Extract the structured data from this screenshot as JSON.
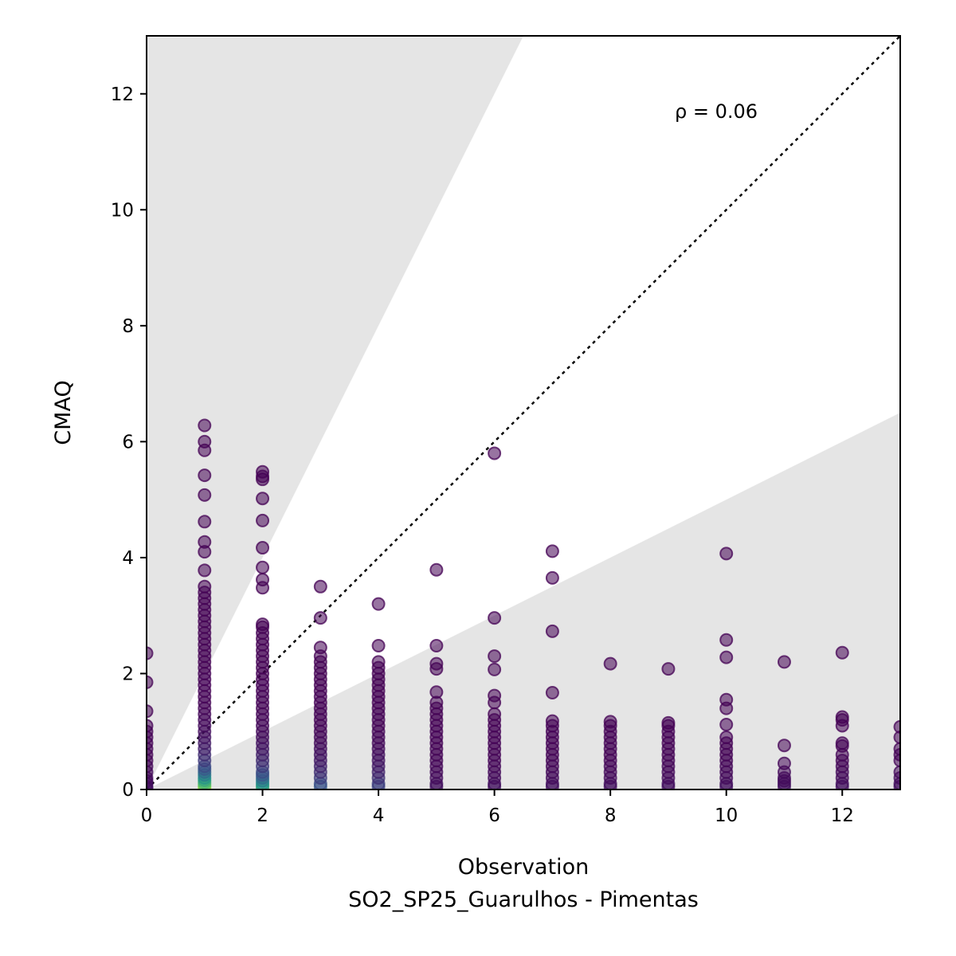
{
  "chart_data": {
    "type": "scatter",
    "title": "",
    "xlabel": "Observation",
    "xlabel_sub": "SO2_SP25_Guarulhos - Pimentas",
    "ylabel": "CMAQ",
    "xlim": [
      0,
      13
    ],
    "ylim": [
      0,
      13
    ],
    "xticks": [
      0,
      2,
      4,
      6,
      8,
      10,
      12
    ],
    "yticks": [
      0,
      2,
      4,
      6,
      8,
      10,
      12
    ],
    "grid": false,
    "annotation": "ρ = 0.06",
    "reference_line": {
      "style": "dotted",
      "slope": 1
    },
    "shaded_bounds": {
      "upper_slope": 2,
      "lower_slope": 0.5
    },
    "colormap": "viridis",
    "colors": {
      "low": "#440154",
      "mid": "#31688e",
      "high": "#fde725",
      "shade": "#e5e5e5"
    },
    "series": [
      {
        "x": 0,
        "y": [
          0.02,
          0.05,
          0.1,
          0.15,
          0.2,
          0.3,
          0.4,
          0.5,
          0.6,
          0.7,
          0.8,
          0.9,
          1.0,
          1.1,
          1.35,
          1.85,
          2.35
        ]
      },
      {
        "x": 1,
        "y": [
          0.02,
          0.05,
          0.08,
          0.12,
          0.16,
          0.2,
          0.25,
          0.3,
          0.35,
          0.4,
          0.5,
          0.6,
          0.7,
          0.8,
          0.9,
          1.0,
          1.1,
          1.2,
          1.3,
          1.4,
          1.5,
          1.6,
          1.7,
          1.8,
          1.9,
          2.0,
          2.1,
          2.2,
          2.3,
          2.4,
          2.5,
          2.6,
          2.7,
          2.8,
          2.9,
          3.0,
          3.1,
          3.2,
          3.3,
          3.4,
          3.5,
          3.78,
          4.1,
          4.27,
          4.62,
          5.08,
          5.42,
          5.85,
          6.0,
          6.28
        ]
      },
      {
        "x": 2,
        "y": [
          0.02,
          0.06,
          0.1,
          0.15,
          0.2,
          0.25,
          0.3,
          0.4,
          0.5,
          0.6,
          0.7,
          0.8,
          0.9,
          1.0,
          1.1,
          1.2,
          1.3,
          1.4,
          1.5,
          1.6,
          1.7,
          1.8,
          1.9,
          2.0,
          2.1,
          2.2,
          2.3,
          2.4,
          2.5,
          2.6,
          2.7,
          2.8,
          2.85,
          3.48,
          3.62,
          3.83,
          4.17,
          4.64,
          5.02,
          5.35,
          5.4,
          5.48
        ]
      },
      {
        "x": 3,
        "y": [
          0.05,
          0.1,
          0.2,
          0.3,
          0.4,
          0.5,
          0.6,
          0.7,
          0.8,
          0.9,
          1.0,
          1.1,
          1.2,
          1.3,
          1.4,
          1.5,
          1.6,
          1.7,
          1.8,
          1.9,
          2.0,
          2.1,
          2.2,
          2.3,
          2.45,
          2.96,
          3.5
        ]
      },
      {
        "x": 4,
        "y": [
          0.05,
          0.1,
          0.2,
          0.3,
          0.4,
          0.5,
          0.6,
          0.7,
          0.8,
          0.9,
          1.0,
          1.1,
          1.2,
          1.3,
          1.4,
          1.5,
          1.6,
          1.7,
          1.8,
          1.9,
          2.0,
          2.1,
          2.2,
          2.48,
          3.2
        ]
      },
      {
        "x": 5,
        "y": [
          0.05,
          0.1,
          0.2,
          0.3,
          0.4,
          0.5,
          0.6,
          0.7,
          0.8,
          0.9,
          1.0,
          1.1,
          1.2,
          1.3,
          1.4,
          1.5,
          1.68,
          2.08,
          2.17,
          2.48,
          3.79
        ]
      },
      {
        "x": 6,
        "y": [
          0.05,
          0.1,
          0.2,
          0.3,
          0.4,
          0.5,
          0.6,
          0.7,
          0.8,
          0.9,
          1.0,
          1.1,
          1.2,
          1.3,
          1.5,
          1.62,
          2.07,
          2.3,
          2.96,
          5.8
        ]
      },
      {
        "x": 7,
        "y": [
          0.05,
          0.1,
          0.2,
          0.3,
          0.4,
          0.5,
          0.6,
          0.7,
          0.8,
          0.9,
          1.0,
          1.1,
          1.18,
          1.67,
          2.73,
          3.65,
          4.11
        ]
      },
      {
        "x": 8,
        "y": [
          0.05,
          0.1,
          0.2,
          0.3,
          0.4,
          0.5,
          0.6,
          0.7,
          0.8,
          0.9,
          1.0,
          1.1,
          1.17,
          2.17
        ]
      },
      {
        "x": 9,
        "y": [
          0.05,
          0.1,
          0.2,
          0.3,
          0.4,
          0.5,
          0.6,
          0.7,
          0.8,
          0.9,
          1.0,
          1.1,
          1.15,
          2.08
        ]
      },
      {
        "x": 10,
        "y": [
          0.05,
          0.1,
          0.2,
          0.3,
          0.4,
          0.5,
          0.6,
          0.7,
          0.8,
          0.9,
          1.12,
          1.4,
          1.55,
          2.28,
          2.58,
          4.07
        ]
      },
      {
        "x": 11,
        "y": [
          0.05,
          0.1,
          0.15,
          0.2,
          0.3,
          0.45,
          0.76,
          2.2
        ]
      },
      {
        "x": 12,
        "y": [
          0.05,
          0.1,
          0.2,
          0.3,
          0.4,
          0.5,
          0.6,
          0.75,
          0.8,
          1.1,
          1.2,
          1.25,
          2.36
        ]
      },
      {
        "x": 13,
        "y": [
          0.05,
          0.1,
          0.2,
          0.3,
          0.5,
          0.6,
          0.7,
          0.9,
          1.08
        ]
      }
    ]
  }
}
